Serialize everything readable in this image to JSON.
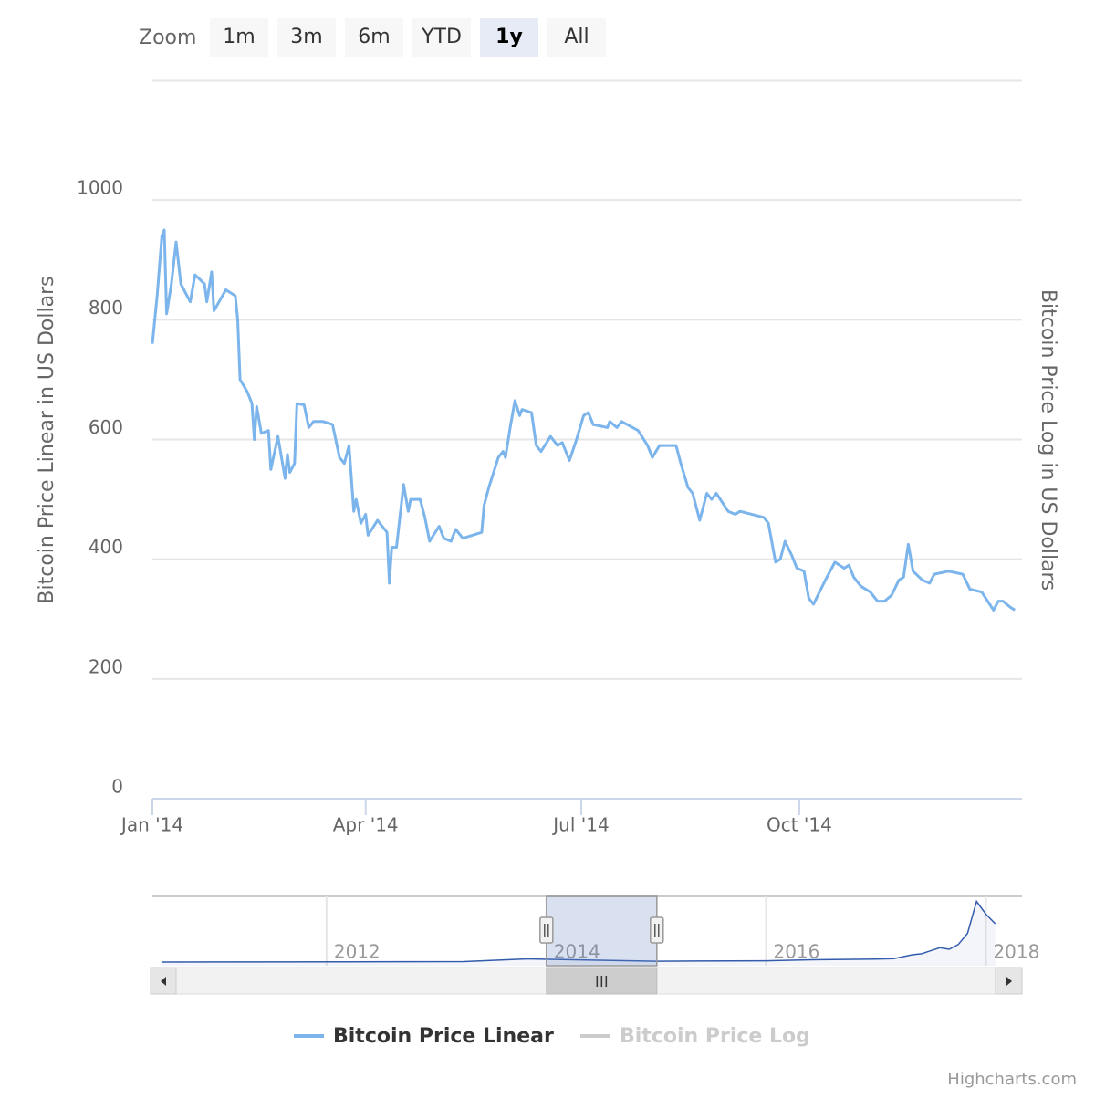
{
  "zoom": {
    "label": "Zoom",
    "buttons": [
      "1m",
      "3m",
      "6m",
      "YTD",
      "1y",
      "All"
    ],
    "selected": "1y"
  },
  "chart_data": {
    "type": "line",
    "x": [
      "2014-01-01",
      "2014-01-03",
      "2014-01-05",
      "2014-01-06",
      "2014-01-07",
      "2014-01-09",
      "2014-01-11",
      "2014-01-13",
      "2014-01-17",
      "2014-01-19",
      "2014-01-23",
      "2014-01-24",
      "2014-01-26",
      "2014-01-27",
      "2014-02-01",
      "2014-02-05",
      "2014-02-06",
      "2014-02-07",
      "2014-02-10",
      "2014-02-12",
      "2014-02-13",
      "2014-02-14",
      "2014-02-16",
      "2014-02-19",
      "2014-02-20",
      "2014-02-23",
      "2014-02-26",
      "2014-02-27",
      "2014-02-28",
      "2014-03-02",
      "2014-03-03",
      "2014-03-06",
      "2014-03-08",
      "2014-03-10",
      "2014-03-14",
      "2014-03-18",
      "2014-03-21",
      "2014-03-23",
      "2014-03-25",
      "2014-03-27",
      "2014-03-28",
      "2014-03-30",
      "2014-04-01",
      "2014-04-02",
      "2014-04-06",
      "2014-04-10",
      "2014-04-11",
      "2014-04-12",
      "2014-04-14",
      "2014-04-17",
      "2014-04-19",
      "2014-04-20",
      "2014-04-24",
      "2014-04-26",
      "2014-04-28",
      "2014-05-02",
      "2014-05-04",
      "2014-05-07",
      "2014-05-09",
      "2014-05-12",
      "2014-05-20",
      "2014-05-21",
      "2014-05-23",
      "2014-05-27",
      "2014-05-29",
      "2014-05-30",
      "2014-06-01",
      "2014-06-03",
      "2014-06-05",
      "2014-06-06",
      "2014-06-10",
      "2014-06-12",
      "2014-06-14",
      "2014-06-18",
      "2014-06-21",
      "2014-06-23",
      "2014-06-26",
      "2014-06-29",
      "2014-07-02",
      "2014-07-04",
      "2014-07-06",
      "2014-07-12",
      "2014-07-13",
      "2014-07-16",
      "2014-07-18",
      "2014-07-25",
      "2014-07-29",
      "2014-07-31",
      "2014-08-03",
      "2014-08-08",
      "2014-08-10",
      "2014-08-12",
      "2014-08-15",
      "2014-08-17",
      "2014-08-20",
      "2014-08-23",
      "2014-08-25",
      "2014-08-27",
      "2014-09-01",
      "2014-09-04",
      "2014-09-06",
      "2014-09-16",
      "2014-09-18",
      "2014-09-21",
      "2014-09-23",
      "2014-09-25",
      "2014-09-28",
      "2014-09-30",
      "2014-10-03",
      "2014-10-05",
      "2014-10-07",
      "2014-10-12",
      "2014-10-16",
      "2014-10-20",
      "2014-10-22",
      "2014-10-24",
      "2014-10-27",
      "2014-10-31",
      "2014-11-03",
      "2014-11-06",
      "2014-11-09",
      "2014-11-12",
      "2014-11-14",
      "2014-11-16",
      "2014-11-18",
      "2014-11-22",
      "2014-11-25",
      "2014-11-27",
      "2014-12-03",
      "2014-12-09",
      "2014-12-12",
      "2014-12-17",
      "2014-12-22",
      "2014-12-24",
      "2014-12-26",
      "2014-12-29",
      "2014-12-31"
    ],
    "series": [
      {
        "name": "Bitcoin Price Linear",
        "color": "#7cb5ec",
        "values": [
          760,
          840,
          940,
          950,
          810,
          860,
          930,
          860,
          830,
          875,
          860,
          830,
          880,
          815,
          850,
          840,
          800,
          700,
          680,
          660,
          600,
          655,
          610,
          615,
          550,
          605,
          535,
          575,
          545,
          560,
          660,
          658,
          620,
          630,
          630,
          625,
          570,
          560,
          590,
          480,
          500,
          460,
          475,
          440,
          465,
          445,
          360,
          420,
          420,
          525,
          480,
          500,
          500,
          470,
          430,
          455,
          435,
          430,
          450,
          435,
          445,
          490,
          520,
          570,
          580,
          570,
          620,
          665,
          640,
          650,
          645,
          590,
          580,
          605,
          590,
          595,
          565,
          600,
          640,
          645,
          625,
          620,
          630,
          620,
          630,
          615,
          590,
          570,
          590,
          590,
          590,
          560,
          520,
          510,
          465,
          510,
          500,
          510,
          480,
          475,
          480,
          470,
          460,
          395,
          400,
          430,
          405,
          385,
          380,
          335,
          325,
          365,
          395,
          385,
          390,
          370,
          355,
          345,
          330,
          330,
          340,
          365,
          370,
          425,
          380,
          365,
          360,
          375,
          380,
          375,
          350,
          345,
          315,
          330,
          330,
          320,
          315
        ]
      },
      {
        "name": "Bitcoin Price Log",
        "color": "#cccccc",
        "axis": "y2",
        "visible": false
      }
    ],
    "xlim": [
      "2014-01-01",
      "2015-01-03"
    ],
    "xticks": [
      {
        "value": "2014-01-01",
        "label": "Jan '14"
      },
      {
        "value": "2014-04-01",
        "label": "Apr '14"
      },
      {
        "value": "2014-07-01",
        "label": "Jul '14"
      },
      {
        "value": "2014-10-01",
        "label": "Oct '14"
      }
    ],
    "ylim": [
      0,
      1200
    ],
    "yticks": [
      0,
      200,
      400,
      600,
      800,
      1000
    ],
    "ylabel": "Bitcoin Price Linear in US Dollars",
    "y2label": "Bitcoin Price Log in US Dollars",
    "grid": true,
    "legend": "bottom"
  },
  "navigator": {
    "type": "area",
    "color": "#335cad",
    "x": [
      "2010-07",
      "2011-06",
      "2013-04",
      "2013-11",
      "2013-12",
      "2014-06",
      "2015-01",
      "2016-01",
      "2016-06",
      "2017-01",
      "2017-03",
      "2017-05",
      "2017-06",
      "2017-08",
      "2017-09",
      "2017-10",
      "2017-11",
      "2017-12",
      "2018-01",
      "2018-02"
    ],
    "values": [
      0,
      15,
      150,
      1000,
      900,
      600,
      250,
      400,
      700,
      900,
      1100,
      2300,
      2600,
      4500,
      4000,
      5500,
      9000,
      19000,
      15000,
      12000
    ],
    "xlim": [
      "2010-06",
      "2018-05"
    ],
    "xticks": [
      2012,
      2014,
      2016,
      2018
    ],
    "ylim": [
      0,
      20000
    ]
  },
  "credits": "Highcharts.com"
}
